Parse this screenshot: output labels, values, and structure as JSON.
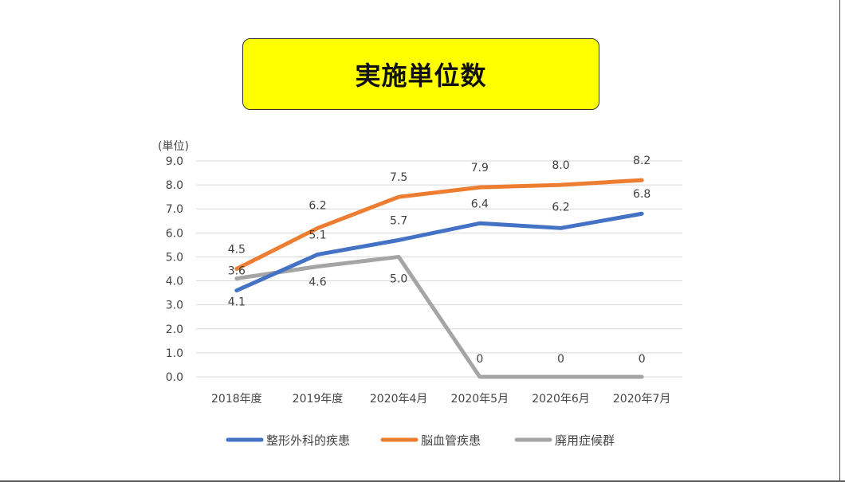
{
  "title": "実施単位数",
  "colors": {
    "title_bg": "#ffff00",
    "series1": "#4472c4",
    "series2": "#ed7d31",
    "series3": "#a5a5a5"
  },
  "chart_data": {
    "type": "line",
    "title": "実施単位数",
    "ylabel": "(単位)",
    "ylim": [
      0,
      9
    ],
    "yticks": [
      "0.0",
      "1.0",
      "2.0",
      "3.0",
      "4.0",
      "5.0",
      "6.0",
      "7.0",
      "8.0",
      "9.0"
    ],
    "categories": [
      "2018年度",
      "2019年度",
      "2020年4月",
      "2020年5月",
      "2020年6月",
      "2020年7月"
    ],
    "grid": true,
    "legend": "bottom",
    "series": [
      {
        "name": "整形外科的疾患",
        "values": [
          3.6,
          5.1,
          5.7,
          6.4,
          6.2,
          6.8
        ],
        "labels": [
          "3.6",
          "5.1",
          "5.7",
          "6.4",
          "6.2",
          "6.8"
        ],
        "color": "#4472c4"
      },
      {
        "name": "脳血管疾患",
        "values": [
          4.5,
          6.2,
          7.5,
          7.9,
          8.0,
          8.2
        ],
        "labels": [
          "4.5",
          "6.2",
          "7.5",
          "7.9",
          "8.0",
          "8.2"
        ],
        "color": "#ed7d31"
      },
      {
        "name": "廃用症候群",
        "values": [
          4.1,
          4.6,
          5.0,
          0,
          0,
          0
        ],
        "labels": [
          "4.1",
          "4.6",
          "5.0",
          "0",
          "0",
          "0"
        ],
        "color": "#a5a5a5"
      }
    ]
  }
}
